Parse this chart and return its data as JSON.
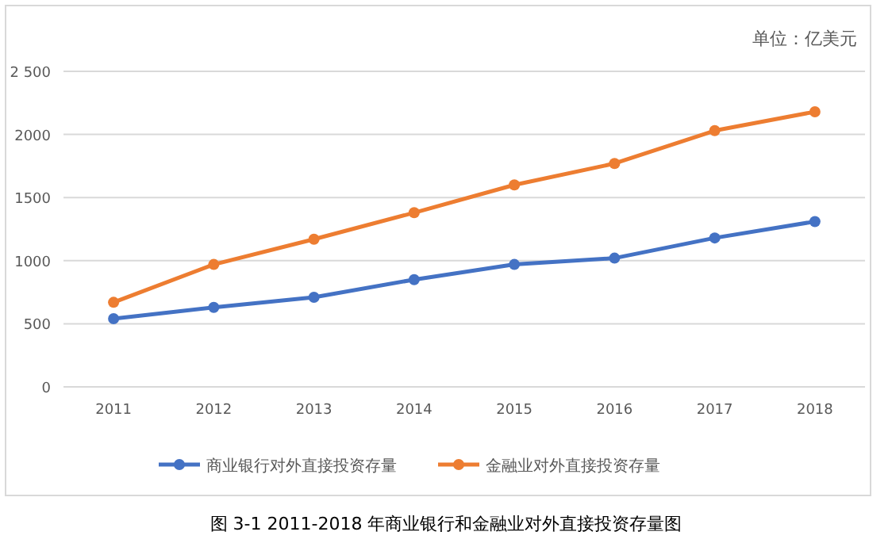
{
  "chart_data": {
    "type": "line",
    "categories": [
      "2011",
      "2012",
      "2013",
      "2014",
      "2015",
      "2016",
      "2017",
      "2018"
    ],
    "series": [
      {
        "name": "商业银行对外直接投资存量",
        "color": "#4472c4",
        "values": [
          540,
          630,
          710,
          850,
          970,
          1020,
          1180,
          1310
        ]
      },
      {
        "name": "金融业对外直接投资存量",
        "color": "#ed7d31",
        "values": [
          670,
          970,
          1170,
          1380,
          1600,
          1770,
          2030,
          2180
        ]
      }
    ],
    "ylim": [
      0,
      2500
    ],
    "yticks": [
      0,
      500,
      1000,
      1500,
      2000,
      {
        "value": 2500,
        "label": "2 500"
      }
    ],
    "grid": "y",
    "legend": "bottom",
    "marker": "circle",
    "line_style": "solid",
    "annotations": [
      "单位：亿美元",
      "图 3-1 2011-2018 年商业银行和金融业对外直接投资存量图"
    ]
  }
}
